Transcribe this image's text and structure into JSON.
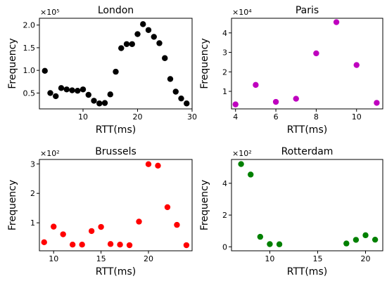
{
  "chart_data": [
    {
      "type": "scatter",
      "title": "London",
      "xlabel": "RTT(ms)",
      "ylabel": "Frequency",
      "multiplier": "×10⁵",
      "color": "#000000",
      "xlim": [
        2,
        30
      ],
      "ylim": [
        0.15,
        2.15
      ],
      "xticks": [
        {
          "v": 10,
          "label": "10"
        },
        {
          "v": 20,
          "label": "20"
        },
        {
          "v": 30,
          "label": "30"
        }
      ],
      "yticks": [
        {
          "v": 0.5,
          "label": "0.5"
        },
        {
          "v": 1.0,
          "label": "1.0"
        },
        {
          "v": 1.5,
          "label": "1.5"
        },
        {
          "v": 2.0,
          "label": "2.0"
        }
      ],
      "x": [
        3,
        4,
        5,
        6,
        7,
        8,
        9,
        10,
        11,
        12,
        13,
        14,
        15,
        16,
        17,
        18,
        19,
        20,
        21,
        22,
        23,
        24,
        25,
        26,
        27,
        28,
        29
      ],
      "y": [
        0.99,
        0.5,
        0.43,
        0.61,
        0.58,
        0.56,
        0.55,
        0.58,
        0.46,
        0.33,
        0.27,
        0.28,
        0.47,
        0.97,
        1.49,
        1.58,
        1.58,
        1.8,
        2.02,
        1.89,
        1.74,
        1.6,
        1.27,
        0.81,
        0.53,
        0.38,
        0.27
      ]
    },
    {
      "type": "scatter",
      "title": "Paris",
      "xlabel": "RTT(ms)",
      "ylabel": "Frequency",
      "multiplier": "×10⁴",
      "color": "#bf00bf",
      "xlim": [
        3.8,
        11.3
      ],
      "ylim": [
        0.1,
        4.75
      ],
      "xticks": [
        {
          "v": 4,
          "label": "4"
        },
        {
          "v": 6,
          "label": "6"
        },
        {
          "v": 8,
          "label": "8"
        },
        {
          "v": 10,
          "label": "10"
        }
      ],
      "yticks": [
        {
          "v": 1,
          "label": "1"
        },
        {
          "v": 2,
          "label": "2"
        },
        {
          "v": 3,
          "label": "3"
        },
        {
          "v": 4,
          "label": "4"
        }
      ],
      "x": [
        4,
        5,
        6,
        7,
        8,
        9,
        10,
        11
      ],
      "y": [
        0.33,
        1.33,
        0.46,
        0.62,
        2.95,
        4.55,
        2.35,
        0.41
      ]
    },
    {
      "type": "scatter",
      "title": "Brussels",
      "xlabel": "RTT(ms)",
      "ylabel": "Frequency",
      "multiplier": "×10²",
      "color": "#ff0000",
      "xlim": [
        8.5,
        24.6
      ],
      "ylim": [
        0.05,
        3.15
      ],
      "xticks": [
        {
          "v": 10,
          "label": "10"
        },
        {
          "v": 15,
          "label": "15"
        },
        {
          "v": 20,
          "label": "20"
        }
      ],
      "yticks": [
        {
          "v": 1,
          "label": "1"
        },
        {
          "v": 2,
          "label": "2"
        },
        {
          "v": 3,
          "label": "3"
        }
      ],
      "x": [
        9,
        10,
        11,
        12,
        13,
        14,
        15,
        16,
        17,
        18,
        19,
        20,
        21,
        22,
        23,
        24
      ],
      "y": [
        0.34,
        0.87,
        0.61,
        0.26,
        0.26,
        0.72,
        0.86,
        0.28,
        0.26,
        0.24,
        1.04,
        2.99,
        2.94,
        1.53,
        0.93,
        0.24
      ]
    },
    {
      "type": "scatter",
      "title": "Rotterdam",
      "xlabel": "RTT(ms)",
      "ylabel": "Frequency",
      "multiplier": "×10²",
      "color": "#008000",
      "xlim": [
        6.0,
        21.8
      ],
      "ylim": [
        -0.25,
        5.5
      ],
      "xticks": [
        {
          "v": 10,
          "label": "10"
        },
        {
          "v": 15,
          "label": "15"
        },
        {
          "v": 20,
          "label": "20"
        }
      ],
      "yticks": [
        {
          "v": 0,
          "label": "0"
        },
        {
          "v": 2,
          "label": "2"
        },
        {
          "v": 4,
          "label": "4"
        }
      ],
      "x": [
        7,
        8,
        9,
        10,
        11,
        18,
        19,
        20,
        21
      ],
      "y": [
        5.21,
        4.55,
        0.63,
        0.17,
        0.16,
        0.21,
        0.44,
        0.73,
        0.45
      ]
    }
  ]
}
